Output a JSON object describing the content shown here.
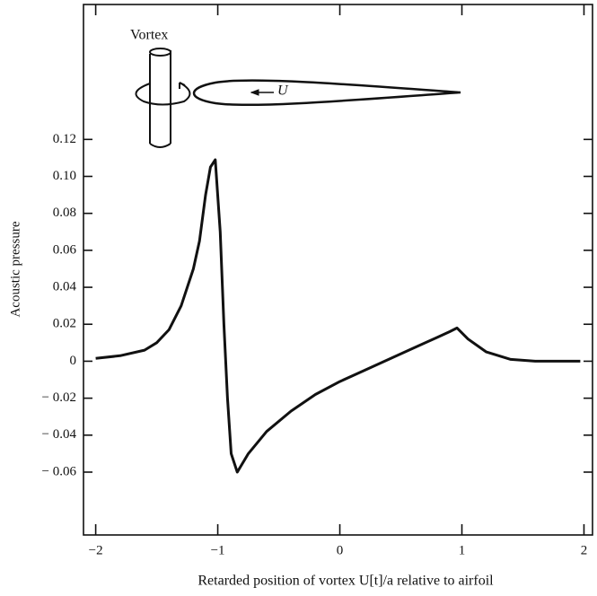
{
  "chart_data": {
    "type": "line",
    "x_label": "Retarded position of vortex U[t]/a relative to airfoil",
    "y_label": "Acoustic pressure",
    "annotations": [
      "Vortex",
      "U"
    ],
    "xlim": [
      -2.1,
      2.07
    ],
    "ylim": [
      -0.094,
      0.193
    ],
    "xticks": [
      {
        "value": -2,
        "label": "−2"
      },
      {
        "value": -1,
        "label": "−1"
      },
      0,
      1,
      2
    ],
    "yticks": [
      0.12,
      {
        "value": 0.1,
        "label": "0.10"
      },
      0.08,
      0.06,
      0.04,
      0.02,
      0,
      {
        "value": -0.02,
        "label": "− 0.02"
      },
      {
        "value": -0.04,
        "label": "− 0.04"
      },
      {
        "value": -0.06,
        "label": "− 0.06"
      }
    ],
    "grid": false,
    "series": [
      {
        "color": "#111111",
        "x": [
          -2.0,
          -1.8,
          -1.6,
          -1.5,
          -1.4,
          -1.3,
          -1.2,
          -1.15,
          -1.1,
          -1.06,
          -1.02,
          -0.98,
          -0.95,
          -0.92,
          -0.89,
          -0.84,
          -0.75,
          -0.6,
          -0.4,
          -0.2,
          0,
          0.2,
          0.4,
          0.6,
          0.8,
          0.9,
          0.96,
          1.05,
          1.2,
          1.4,
          1.6,
          1.8,
          1.97
        ],
        "values": [
          0.0015,
          0.003,
          0.006,
          0.01,
          0.017,
          0.03,
          0.05,
          0.065,
          0.09,
          0.105,
          0.109,
          0.07,
          0.02,
          -0.02,
          -0.05,
          -0.06,
          -0.05,
          -0.038,
          -0.027,
          -0.018,
          -0.011,
          -0.005,
          0.001,
          0.007,
          0.013,
          0.016,
          0.018,
          0.012,
          0.005,
          0.001,
          0,
          0,
          0
        ]
      }
    ]
  }
}
